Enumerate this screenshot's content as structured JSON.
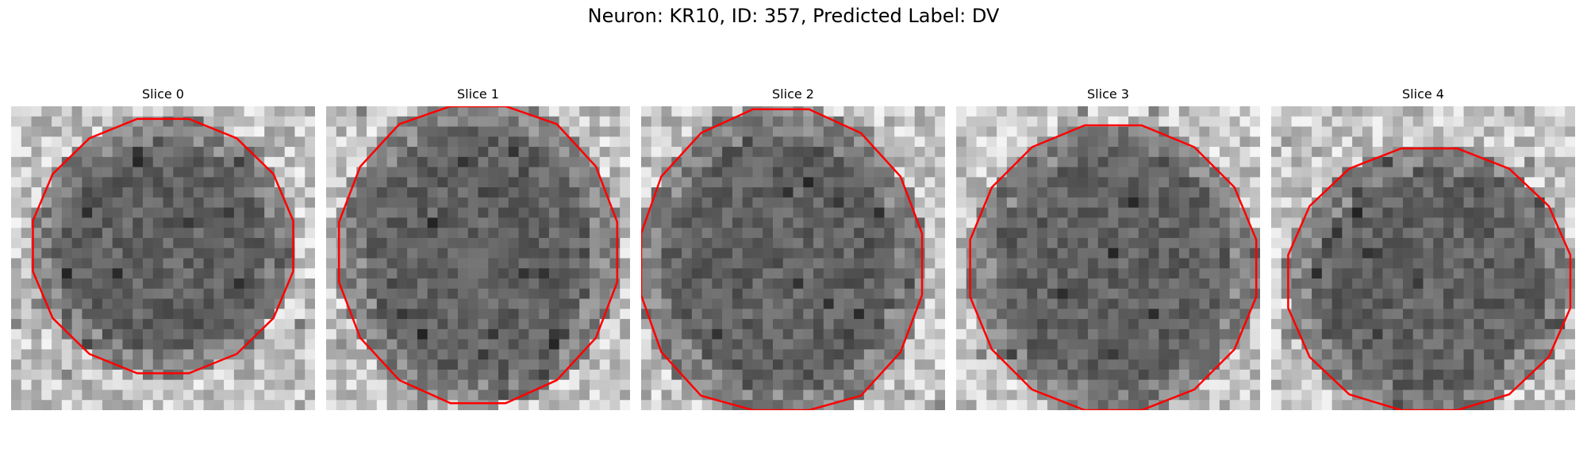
{
  "figure": {
    "title": "Neuron: KR10, ID: 357, Predicted Label: DV"
  },
  "panels": [
    {
      "title": "Slice 0"
    },
    {
      "title": "Slice 1"
    },
    {
      "title": "Slice 2"
    },
    {
      "title": "Slice 3"
    },
    {
      "title": "Slice 4"
    }
  ],
  "colors": {
    "contour": "#ff0000",
    "background": "#ffffff"
  }
}
